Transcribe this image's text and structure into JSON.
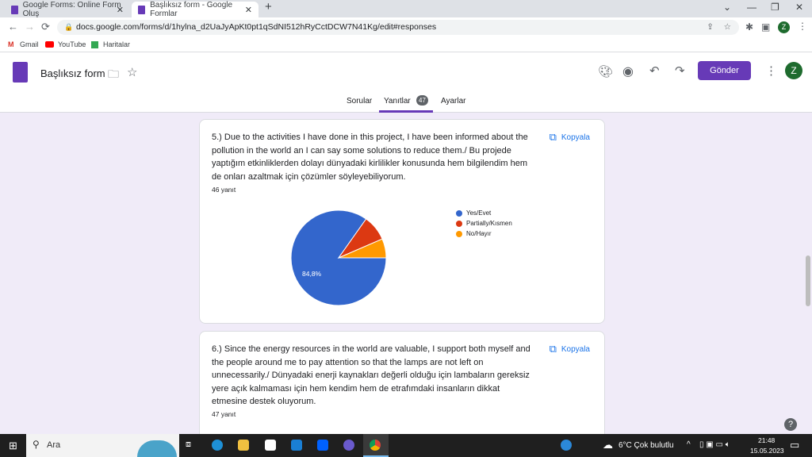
{
  "browser": {
    "tabs": [
      {
        "title": "Google Forms: Online Form Oluş"
      },
      {
        "title": "Başlıksız form - Google Formlar"
      }
    ],
    "url": "docs.google.com/forms/d/1hylna_d2UaJyApKt0pt1qSdNI512hRyCctDCW7N41Kg/edit#responses",
    "bookmarks": [
      "Gmail",
      "YouTube",
      "Haritalar"
    ],
    "profile": "Z"
  },
  "form": {
    "title": "Başlıksız form",
    "send": "Gönder",
    "avatar": "Z",
    "tabs": {
      "questions": "Sorular",
      "responses": "Yanıtlar",
      "responses_count": "47",
      "settings": "Ayarlar"
    }
  },
  "questions": [
    {
      "text": "5.) Due to the activities I have done in this project, I have been informed about the pollution in the world an I can say some solutions to reduce them./ Bu projede yaptığım etkinliklerden dolayı dünyadaki kirlilikler konusunda hem bilgilendim hem de onları azaltmak için çözümler söyleyebiliyorum.",
      "count": "46 yanıt",
      "copy": "Kopyala"
    },
    {
      "text": "6.) Since the energy resources in the world are valuable, I support both myself and the people around me to pay attention so that the lamps are not left on unnecessarily./ Dünyadaki enerji kaynakları değerli olduğu için lambaların gereksiz yere açık kalmaması için hem kendim hem de etrafımdaki insanların dikkat etmesine destek oluyorum.",
      "count": "47 yanıt",
      "copy": "Kopyala"
    }
  ],
  "chart_data": {
    "type": "pie",
    "series": [
      {
        "label": "Yes/Evet",
        "percent": 84.8,
        "color": "#3366cc"
      },
      {
        "label": "Partially/Kısmen",
        "percent": 8.7,
        "color": "#dc3912"
      },
      {
        "label": "No/Hayır",
        "percent": 6.5,
        "color": "#ff9900"
      }
    ],
    "data_labels": [
      "84,8%"
    ],
    "legend": "right"
  },
  "taskbar": {
    "search": "Ara",
    "weather": "6°C  Çok bulutlu",
    "time": "21:48",
    "date": "15.05.2023"
  }
}
